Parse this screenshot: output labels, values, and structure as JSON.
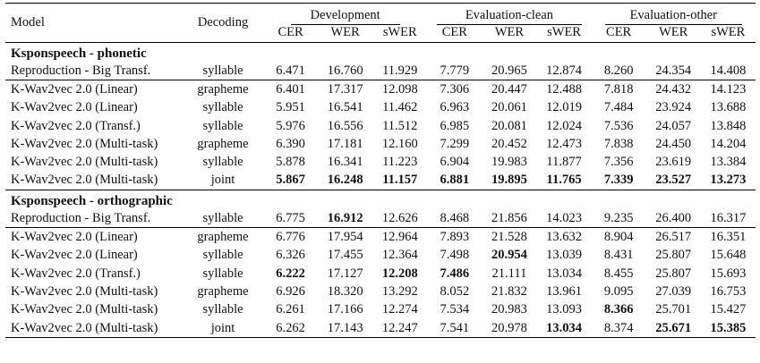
{
  "header": {
    "model": "Model",
    "decoding": "Decoding",
    "groups": [
      "Development",
      "Evaluation-clean",
      "Evaluation-other"
    ],
    "metrics": [
      "CER",
      "WER",
      "sWER",
      "CER",
      "WER",
      "sWER",
      "CER",
      "WER",
      "sWER"
    ]
  },
  "sections": [
    {
      "title": "Ksponspeech - phonetic",
      "rows": [
        {
          "model": "Reproduction - Big Transf.",
          "decoding": "syllable",
          "values": [
            "6.471",
            "16.760",
            "11.929",
            "7.779",
            "20.965",
            "12.874",
            "8.260",
            "24.354",
            "14.408"
          ],
          "bold": []
        },
        {
          "model": "K-Wav2vec 2.0 (Linear)",
          "decoding": "grapheme",
          "values": [
            "6.401",
            "17.317",
            "12.098",
            "7.306",
            "20.447",
            "12.488",
            "7.818",
            "24.432",
            "14.123"
          ],
          "bold": []
        },
        {
          "model": "K-Wav2vec 2.0 (Linear)",
          "decoding": "syllable",
          "values": [
            "5.951",
            "16.541",
            "11.462",
            "6.963",
            "20.061",
            "12.019",
            "7.484",
            "23.924",
            "13.688"
          ],
          "bold": []
        },
        {
          "model": "K-Wav2vec 2.0 (Transf.)",
          "decoding": "syllable",
          "values": [
            "5.976",
            "16.556",
            "11.512",
            "6.985",
            "20.081",
            "12.024",
            "7.536",
            "24.057",
            "13.848"
          ],
          "bold": []
        },
        {
          "model": "K-Wav2vec 2.0 (Multi-task)",
          "decoding": "grapheme",
          "values": [
            "6.390",
            "17.181",
            "12.160",
            "7.299",
            "20.452",
            "12.473",
            "7.838",
            "24.450",
            "14.204"
          ],
          "bold": []
        },
        {
          "model": "K-Wav2vec 2.0 (Multi-task)",
          "decoding": "syllable",
          "values": [
            "5.878",
            "16.341",
            "11.223",
            "6.904",
            "19.983",
            "11.877",
            "7.356",
            "23.619",
            "13.384"
          ],
          "bold": []
        },
        {
          "model": "K-Wav2vec 2.0 (Multi-task)",
          "decoding": "joint",
          "values": [
            "5.867",
            "16.248",
            "11.157",
            "6.881",
            "19.895",
            "11.765",
            "7.339",
            "23.527",
            "13.273"
          ],
          "bold": [
            0,
            1,
            2,
            3,
            4,
            5,
            6,
            7,
            8
          ]
        }
      ]
    },
    {
      "title": "Ksponspeech - orthographic",
      "rows": [
        {
          "model": "Reproduction - Big Transf.",
          "decoding": "syllable",
          "values": [
            "6.775",
            "16.912",
            "12.626",
            "8.468",
            "21.856",
            "14.023",
            "9.235",
            "26.400",
            "16.317"
          ],
          "bold": [
            1
          ]
        },
        {
          "model": "K-Wav2vec 2.0 (Linear)",
          "decoding": "grapheme",
          "values": [
            "6.776",
            "17.954",
            "12.964",
            "7.893",
            "21.528",
            "13.632",
            "8.904",
            "26.517",
            "16.351"
          ],
          "bold": []
        },
        {
          "model": "K-Wav2vec 2.0 (Linear)",
          "decoding": "syllable",
          "values": [
            "6.326",
            "17.455",
            "12.364",
            "7.498",
            "20.954",
            "13.039",
            "8.431",
            "25.807",
            "15.648"
          ],
          "bold": [
            4
          ]
        },
        {
          "model": "K-Wav2vec 2.0 (Transf.)",
          "decoding": "syllable",
          "values": [
            "6.222",
            "17.127",
            "12.208",
            "7.486",
            "21.111",
            "13.034",
            "8.455",
            "25.807",
            "15.693"
          ],
          "bold": [
            0,
            2,
            3
          ]
        },
        {
          "model": "K-Wav2vec 2.0 (Multi-task)",
          "decoding": "grapheme",
          "values": [
            "6.926",
            "18.320",
            "13.292",
            "8.052",
            "21.832",
            "13.961",
            "9.095",
            "27.039",
            "16.753"
          ],
          "bold": []
        },
        {
          "model": "K-Wav2vec 2.0 (Multi-task)",
          "decoding": "syllable",
          "values": [
            "6.261",
            "17.166",
            "12.274",
            "7.534",
            "20.983",
            "13.093",
            "8.366",
            "25.701",
            "15.427"
          ],
          "bold": [
            6
          ]
        },
        {
          "model": "K-Wav2vec 2.0 (Multi-task)",
          "decoding": "joint",
          "values": [
            "6.262",
            "17.143",
            "12.247",
            "7.541",
            "20.978",
            "13.034",
            "8.374",
            "25.671",
            "15.385"
          ],
          "bold": [
            5,
            7,
            8
          ]
        }
      ]
    }
  ]
}
